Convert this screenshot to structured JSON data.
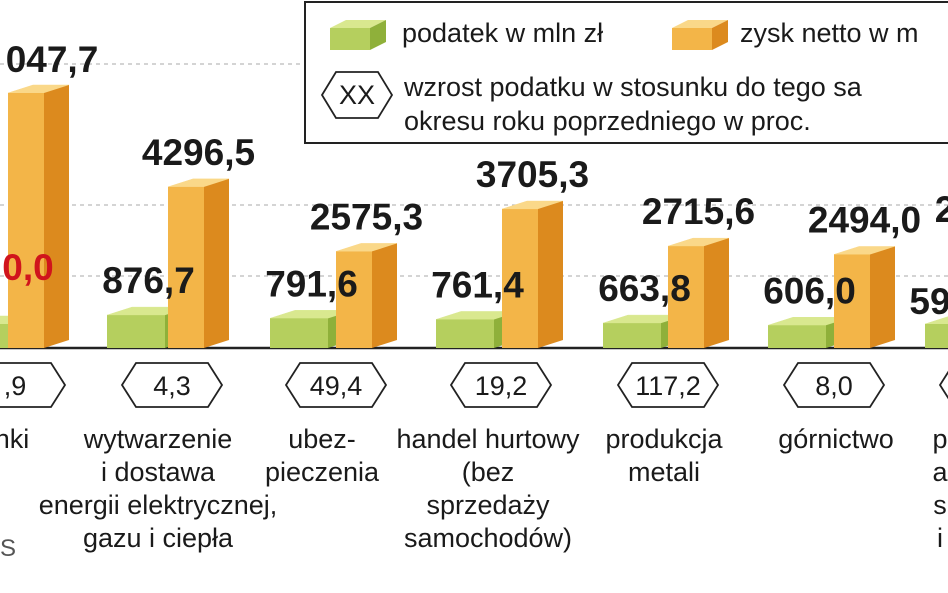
{
  "colors": {
    "tax_front": "#b5cf5e",
    "tax_top": "#d9e88f",
    "tax_side": "#8fb03a",
    "profit_front": "#f3b548",
    "profit_top": "#fad889",
    "profit_side": "#dc8a1e",
    "highlight_red": "#d0141c"
  },
  "legend": {
    "tax_label": "podatek w mln zł",
    "profit_label": "zysk netto w m",
    "hex_sample": "XX",
    "hex_line1": "wzrost podatku w stosunku do tego sa",
    "hex_line2": "okresu roku poprzedniego w proc."
  },
  "source_fragment": "S",
  "chart_data": {
    "type": "bar",
    "series": [
      {
        "name": "podatek w mln zł",
        "values": [
          null,
          876.7,
          791.6,
          761.4,
          663.8,
          606.0,
          null
        ]
      },
      {
        "name": "zysk netto w m",
        "values": [
          null,
          4296.5,
          2575.3,
          3705.3,
          2715.6,
          2494.0,
          null
        ]
      }
    ],
    "value_labels": {
      "tax": [
        "0,0",
        "876,7",
        "791,6",
        "761,4",
        "663,8",
        "606,0",
        "59"
      ],
      "profit": [
        "047,7",
        "4296,5",
        "2575,3",
        "3705,3",
        "2715,6",
        "2494,0",
        "2"
      ]
    },
    "growth_pct_labels": [
      ",9",
      "4,3",
      "49,4",
      "19,2",
      "117,2",
      "8,0",
      ""
    ],
    "categories": [
      [
        "nki"
      ],
      [
        "wytwarzenie",
        "i dostawa",
        "energii elektrycznej,",
        "gazu i ciepła"
      ],
      [
        "ubez-",
        "pieczenia"
      ],
      [
        "handel hurtowy",
        "(bez",
        "sprzedaży",
        "samochodów)"
      ],
      [
        "produkcja",
        "metali"
      ],
      [
        "górnictwo"
      ],
      [
        "p",
        "a",
        "s",
        "i"
      ]
    ],
    "legend_position": "top-right",
    "grid": false
  }
}
